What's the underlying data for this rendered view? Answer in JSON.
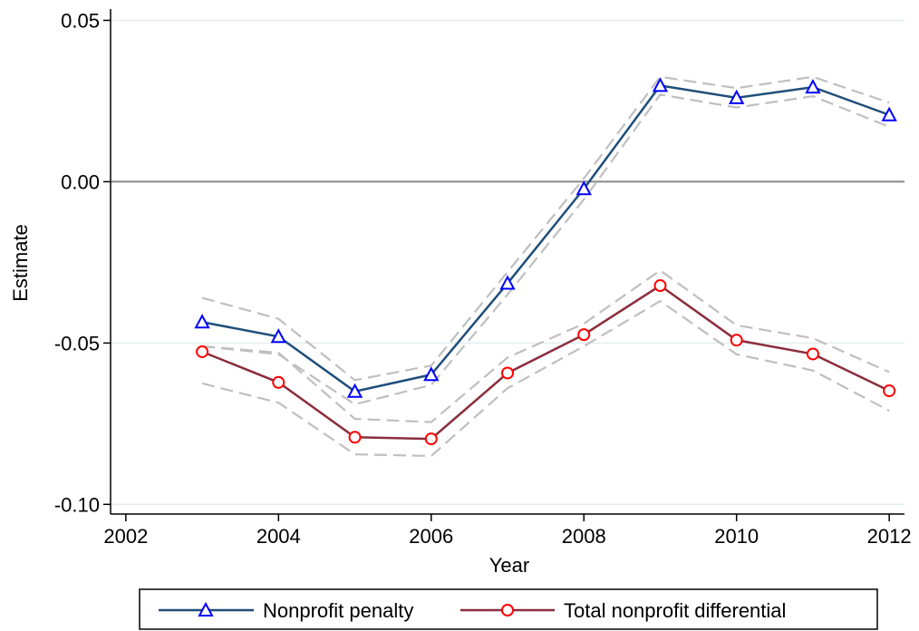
{
  "chart_data": {
    "type": "line",
    "xlabel": "Year",
    "ylabel": "Estimate",
    "xlim": [
      2001.8,
      2012.2
    ],
    "ylim": [
      -0.103,
      0.0535
    ],
    "x_ticks": [
      2002,
      2004,
      2006,
      2008,
      2010,
      2012
    ],
    "x_tick_labels": [
      "2002",
      "2004",
      "2006",
      "2008",
      "2010",
      "2012"
    ],
    "y_ticks": [
      0.05,
      0.0,
      -0.05,
      -0.1
    ],
    "y_tick_labels": [
      "0.05",
      "0.00",
      "-0.05",
      "-0.10"
    ],
    "grid": "horizontal",
    "zero_line": true,
    "legend_position": "bottom",
    "x": [
      2003,
      2004,
      2005,
      2006,
      2007,
      2008,
      2009,
      2010,
      2011,
      2012
    ],
    "series": [
      {
        "name": "Nonprofit penalty",
        "color": "#1f4e79",
        "marker": "triangle",
        "marker_color": "#0000ff",
        "values": [
          -0.0435,
          -0.048,
          -0.065,
          -0.0598,
          -0.0315,
          -0.0022,
          0.0298,
          0.026,
          0.0293,
          0.0207
        ],
        "ci_upper": [
          -0.036,
          -0.0425,
          -0.0615,
          -0.057,
          -0.028,
          0.001,
          0.0325,
          0.029,
          0.0325,
          0.0245
        ],
        "ci_lower": [
          -0.051,
          -0.0535,
          -0.069,
          -0.063,
          -0.035,
          -0.0055,
          0.027,
          0.023,
          0.0265,
          0.017
        ]
      },
      {
        "name": "Total nonprofit differential",
        "color": "#8b2e3c",
        "marker": "circle",
        "marker_color": "#ff0000",
        "values": [
          -0.0527,
          -0.0622,
          -0.0792,
          -0.0797,
          -0.0593,
          -0.0474,
          -0.0322,
          -0.0491,
          -0.0534,
          -0.0648
        ],
        "ci_upper": [
          -0.051,
          -0.053,
          -0.0735,
          -0.0745,
          -0.0545,
          -0.044,
          -0.0275,
          -0.0445,
          -0.0485,
          -0.059
        ],
        "ci_lower": [
          -0.0625,
          -0.0685,
          -0.0845,
          -0.085,
          -0.064,
          -0.051,
          -0.037,
          -0.0535,
          -0.0585,
          -0.071
        ]
      }
    ],
    "ci_color": "#bfbfbf"
  }
}
